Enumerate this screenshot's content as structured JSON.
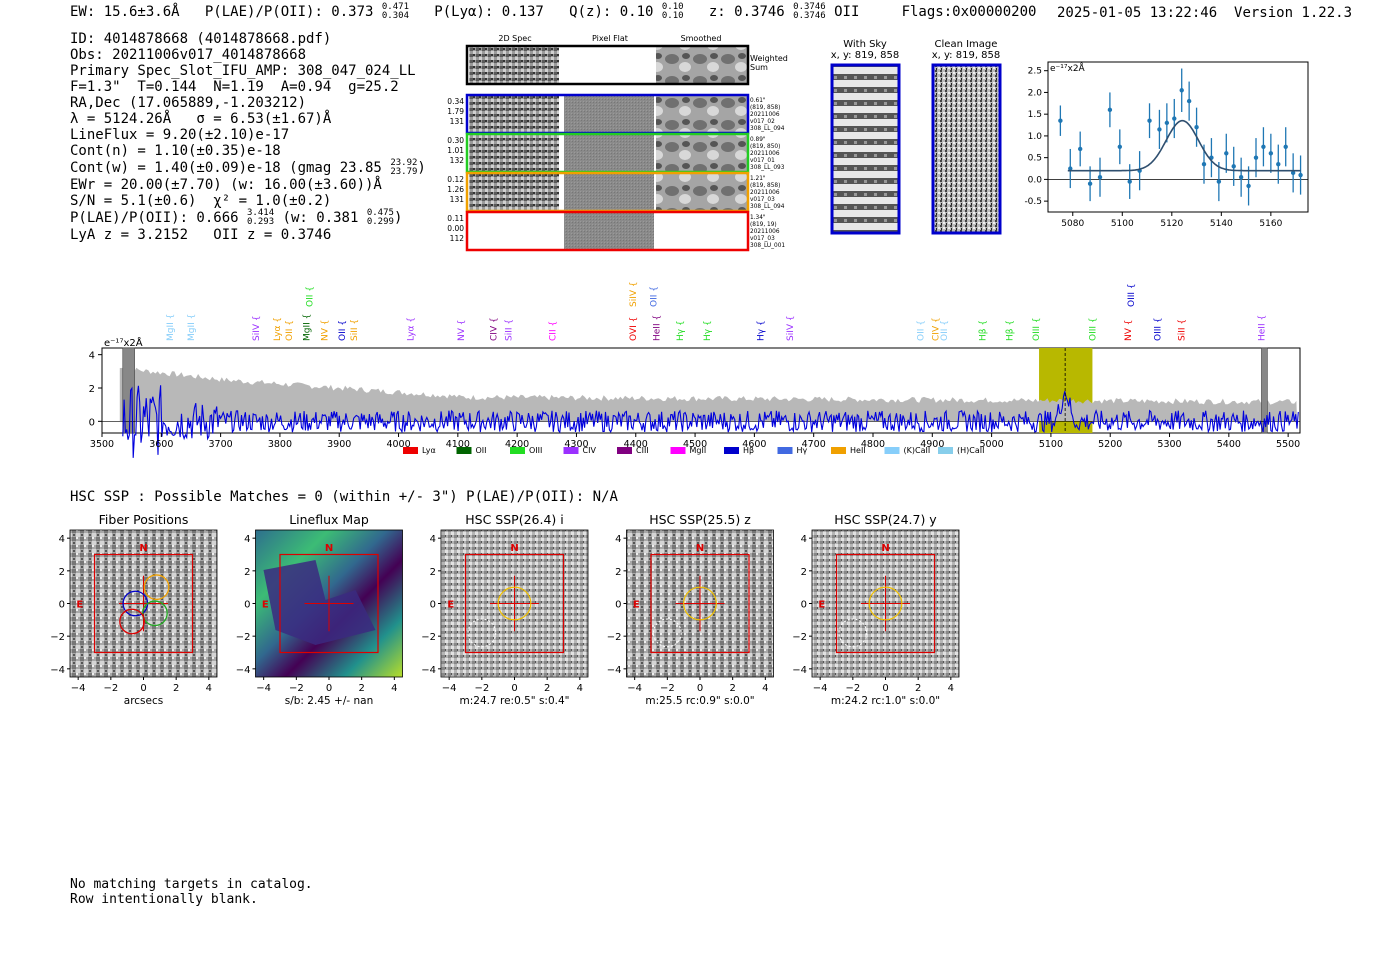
{
  "header": {
    "ew": "EW: 15.6±3.6Å",
    "plae_label": "P(LAE)/P(OII): 0.373",
    "plae_hi": "0.471",
    "plae_lo": "0.304",
    "plya": "P(Lyα): 0.137",
    "qz_label": "Q(z): 0.10",
    "qz_hi": "0.10",
    "qz_lo": "0.10",
    "z_label": "z: 0.3746",
    "z_hi": "0.3746",
    "z_lo": "0.3746",
    "z_line": "OII",
    "flags": "Flags:0x00000200",
    "datetime": "2025-01-05 13:22:46",
    "version": "Version 1.22.3"
  },
  "info": {
    "id": "ID: 4014878668 (4014878668.pdf)",
    "obs": "Obs: 20211006v017_4014878668",
    "primary": "Primary Spec_Slot_IFU_AMP: 308_047_024_LL",
    "fit": "F=1.3\"  T=0.144  N=1.19  A=0.94  g=25.2",
    "radec": "RA,Dec (17.065889,-1.203212)",
    "lambda": "λ = 5124.26Å   σ = 6.53(±1.67)Å",
    "lineflux": "LineFlux = 9.20(±2.10)e-17",
    "contn": "Cont(n) = 1.10(±0.35)e-18",
    "contw": "Cont(w) = 1.40(±0.09)e-18 (gmag 23.85",
    "gmag_hi": "23.92",
    "gmag_lo": "23.79",
    "contw_end": ")",
    "ewr": "EWr = 20.00(±7.70) (w: 16.00(±3.60))Å",
    "sn": "S/N = 5.1(±0.6)  χ² = 1.0(±0.2)",
    "plae": "P(LAE)/P(OII): 0.666",
    "plae_hi": "3.414",
    "plae_lo": "0.293",
    "plae_w": "(w: 0.381",
    "plae_w_hi": "0.475",
    "plae_w_lo": "0.299",
    "plae_end": ")",
    "lya": "LyA z = 3.2152   OII z = 0.3746"
  },
  "cutouts": {
    "col_titles": [
      "2D Spec",
      "Pixel Flat",
      "Smoothed"
    ],
    "weighted_sum": [
      "Weighted",
      "Sum"
    ],
    "rows": [
      {
        "left": [
          "0.34",
          "1.79",
          "131"
        ],
        "right": [
          "0.61\"",
          "(819, 858)",
          "20211006",
          "v017_02",
          "308_LL_094"
        ],
        "color": "#0000cc"
      },
      {
        "left": [
          "0.30",
          "1.01",
          "132"
        ],
        "right": [
          "0.89\"",
          "(819, 850)",
          "20211006",
          "v017_01",
          "308_LL_093"
        ],
        "color": "#22cc22"
      },
      {
        "left": [
          "0.12",
          "1.26",
          "131"
        ],
        "right": [
          "1.21\"",
          "(819, 858)",
          "20211006",
          "v017_03",
          "308_LL_094"
        ],
        "color": "#f0a000"
      },
      {
        "left": [
          "0.11",
          "0.00",
          "112"
        ],
        "right": [
          "1.34\"",
          "(819, 19)",
          "20211006",
          "v017_03",
          "308_LU_001"
        ],
        "color": "#ee0000"
      }
    ],
    "with_sky": [
      "With Sky",
      "x, y: 819, 858"
    ],
    "clean_image": [
      "Clean Image",
      "x, y: 819, 858"
    ]
  },
  "fit_plot": {
    "unit_label": "e⁻¹⁷x2Å",
    "xlim": [
      5070,
      5175
    ],
    "ylim": [
      -0.75,
      2.7
    ],
    "xticks": [
      "5080",
      "5100",
      "5120",
      "5140",
      "5160"
    ],
    "yticks": [
      "2.5",
      "2.0",
      "1.5",
      "1.0",
      "0.5",
      "0.0",
      "-0.5"
    ]
  },
  "chart_data": [
    {
      "type": "scatter",
      "title": "",
      "unit_label": "e⁻¹⁷x2Å",
      "xlim": [
        5070,
        5175
      ],
      "ylim": [
        -0.75,
        2.7
      ],
      "points": [
        {
          "x": 5075,
          "y": 1.35,
          "e": 0.35
        },
        {
          "x": 5079,
          "y": 0.25,
          "e": 0.45
        },
        {
          "x": 5083,
          "y": 0.7,
          "e": 0.4
        },
        {
          "x": 5087,
          "y": -0.1,
          "e": 0.4
        },
        {
          "x": 5091,
          "y": 0.05,
          "e": 0.45
        },
        {
          "x": 5095,
          "y": 1.6,
          "e": 0.4
        },
        {
          "x": 5099,
          "y": 0.75,
          "e": 0.4
        },
        {
          "x": 5103,
          "y": -0.05,
          "e": 0.4
        },
        {
          "x": 5107,
          "y": 0.2,
          "e": 0.45
        },
        {
          "x": 5111,
          "y": 1.35,
          "e": 0.4
        },
        {
          "x": 5115,
          "y": 1.15,
          "e": 0.45
        },
        {
          "x": 5118,
          "y": 1.3,
          "e": 0.45
        },
        {
          "x": 5121,
          "y": 1.4,
          "e": 0.45
        },
        {
          "x": 5124,
          "y": 2.05,
          "e": 0.5
        },
        {
          "x": 5127,
          "y": 1.8,
          "e": 0.45
        },
        {
          "x": 5130,
          "y": 1.2,
          "e": 0.45
        },
        {
          "x": 5133,
          "y": 0.35,
          "e": 0.45
        },
        {
          "x": 5136,
          "y": 0.5,
          "e": 0.45
        },
        {
          "x": 5139,
          "y": -0.05,
          "e": 0.45
        },
        {
          "x": 5142,
          "y": 0.6,
          "e": 0.45
        },
        {
          "x": 5145,
          "y": 0.3,
          "e": 0.45
        },
        {
          "x": 5148,
          "y": 0.05,
          "e": 0.45
        },
        {
          "x": 5151,
          "y": -0.15,
          "e": 0.45
        },
        {
          "x": 5154,
          "y": 0.5,
          "e": 0.45
        },
        {
          "x": 5157,
          "y": 0.75,
          "e": 0.45
        },
        {
          "x": 5160,
          "y": 0.6,
          "e": 0.45
        },
        {
          "x": 5163,
          "y": 0.35,
          "e": 0.45
        },
        {
          "x": 5166,
          "y": 0.75,
          "e": 0.45
        },
        {
          "x": 5169,
          "y": 0.15,
          "e": 0.45
        },
        {
          "x": 5172,
          "y": 0.1,
          "e": 0.45
        }
      ],
      "model": {
        "continuum": 0.2,
        "amplitude": 1.15,
        "center": 5124.26,
        "sigma": 6.53
      }
    },
    {
      "type": "line",
      "title": "",
      "unit_label": "e⁻¹⁷x2Å",
      "xlim": [
        3500,
        5520
      ],
      "ylim": [
        -0.7,
        4.4
      ],
      "xticks": [
        "3500",
        "3600",
        "3700",
        "3800",
        "3900",
        "4000",
        "4100",
        "4200",
        "4300",
        "4400",
        "4500",
        "4600",
        "4700",
        "4800",
        "4900",
        "5000",
        "5100",
        "5200",
        "5300",
        "5400",
        "5500"
      ],
      "yticks": [
        "4",
        "2",
        "0"
      ],
      "highlight_x": [
        5080,
        5170
      ],
      "detection_x": 5124,
      "masked_regions": [
        [
          3535,
          3555
        ],
        [
          5455,
          5465
        ]
      ],
      "lines": [
        {
          "label": "MgII",
          "x": 3615,
          "color": "#87cefa",
          "row": 1
        },
        {
          "label": "MgII",
          "x": 3650,
          "color": "#87cefa",
          "row": 1
        },
        {
          "label": "SiIV",
          "x": 3760,
          "color": "#9b30ff",
          "row": 1
        },
        {
          "label": "Lyα",
          "x": 3795,
          "color": "#f0a000",
          "row": 1
        },
        {
          "label": "OII",
          "x": 3815,
          "color": "#f0a000",
          "row": 1
        },
        {
          "label": "MgII",
          "x": 3845,
          "color": "#006400",
          "row": 1
        },
        {
          "label": "OII",
          "x": 3850,
          "color": "#22dd22",
          "row": 0
        },
        {
          "label": "NV",
          "x": 3875,
          "color": "#f0a000",
          "row": 1
        },
        {
          "label": "OII",
          "x": 3905,
          "color": "#0000cc",
          "row": 1
        },
        {
          "label": "SiII",
          "x": 3925,
          "color": "#f0a000",
          "row": 1
        },
        {
          "label": "Lyα",
          "x": 4020,
          "color": "#9b30ff",
          "row": 1
        },
        {
          "label": "NV",
          "x": 4105,
          "color": "#9b30ff",
          "row": 1
        },
        {
          "label": "CIV",
          "x": 4160,
          "color": "#800080",
          "row": 1
        },
        {
          "label": "SiII",
          "x": 4185,
          "color": "#9b30ff",
          "row": 1
        },
        {
          "label": "CII",
          "x": 4260,
          "color": "#ff00ff",
          "row": 1
        },
        {
          "label": "SiIV",
          "x": 4395,
          "color": "#f0a000",
          "row": 0
        },
        {
          "label": "OVI",
          "x": 4395,
          "color": "#ee0000",
          "row": 1
        },
        {
          "label": "OII",
          "x": 4430,
          "color": "#4169e1",
          "row": 0
        },
        {
          "label": "HeII",
          "x": 4435,
          "color": "#800080",
          "row": 1
        },
        {
          "label": "Hγ",
          "x": 4475,
          "color": "#22dd22",
          "row": 1
        },
        {
          "label": "Hγ",
          "x": 4520,
          "color": "#22dd22",
          "row": 1
        },
        {
          "label": "Hγ",
          "x": 4610,
          "color": "#0000cc",
          "row": 1
        },
        {
          "label": "SiIV",
          "x": 4660,
          "color": "#9b30ff",
          "row": 1
        },
        {
          "label": "OII",
          "x": 4880,
          "color": "#87cefa",
          "row": 1
        },
        {
          "label": "CIV",
          "x": 4905,
          "color": "#f0a000",
          "row": 1
        },
        {
          "label": "OII",
          "x": 4920,
          "color": "#87cefa",
          "row": 1
        },
        {
          "label": "Hβ",
          "x": 4985,
          "color": "#22dd22",
          "row": 1
        },
        {
          "label": "Hβ",
          "x": 5030,
          "color": "#22dd22",
          "row": 1
        },
        {
          "label": "OIII",
          "x": 5075,
          "color": "#22dd22",
          "row": 1
        },
        {
          "label": "OIII",
          "x": 5170,
          "color": "#22dd22",
          "row": 1
        },
        {
          "label": "NV",
          "x": 5230,
          "color": "#ee0000",
          "row": 1
        },
        {
          "label": "OIII",
          "x": 5235,
          "color": "#0000cc",
          "row": 0
        },
        {
          "label": "OIII",
          "x": 5280,
          "color": "#0000cc",
          "row": 1
        },
        {
          "label": "SiII",
          "x": 5320,
          "color": "#ee0000",
          "row": 1
        },
        {
          "label": "HeII",
          "x": 5455,
          "color": "#9b30ff",
          "row": 1
        }
      ],
      "legend": [
        {
          "label": "Lyα",
          "color": "#ee0000"
        },
        {
          "label": "OII",
          "color": "#006400"
        },
        {
          "label": "OIII",
          "color": "#22dd22"
        },
        {
          "label": "CIV",
          "color": "#9b30ff"
        },
        {
          "label": "CIII",
          "color": "#800080"
        },
        {
          "label": "MgII",
          "color": "#ff00ff"
        },
        {
          "label": "Hβ",
          "color": "#0000cc"
        },
        {
          "label": "Hγ",
          "color": "#4169e1"
        },
        {
          "label": "HeII",
          "color": "#f0a000"
        },
        {
          "label": "(K)CaII",
          "color": "#87cefa"
        },
        {
          "label": "(H)CaII",
          "color": "#87ceeb"
        }
      ]
    }
  ],
  "hsc": {
    "summary": "HSC SSP : Possible Matches = 0 (within +/- 3\")  P(LAE)/P(OII): N/A",
    "panels": [
      {
        "title": "Fiber Positions",
        "caption": "arcsecs"
      },
      {
        "title": "Lineflux Map",
        "caption": "s/b: 2.45 +/- nan"
      },
      {
        "title": "HSC SSP(26.4) i",
        "caption": "m:24.7  re:0.5\"  s:0.4\""
      },
      {
        "title": "HSC SSP(25.5) z",
        "caption": "m:25.5 rc:0.9\"  s:0.0\""
      },
      {
        "title": "HSC SSP(24.7) y",
        "caption": "m:24.2 rc:1.0\"  s:0.0\""
      }
    ],
    "ticks": [
      "4",
      "2",
      "0",
      "−2",
      "−4"
    ],
    "xticks": [
      "−4",
      "−2",
      "0",
      "2",
      "4"
    ],
    "north": "N",
    "east": "E"
  },
  "catalog_note": [
    "No matching targets in catalog.",
    "Row intentionally blank."
  ],
  "colors": {
    "spectrum": "#0000dd",
    "noise": "#b8b8b8",
    "highlight": "#b8b800",
    "fit": "#1f77b4",
    "model": "#2f4f6f",
    "frame_red": "#dd0000"
  }
}
